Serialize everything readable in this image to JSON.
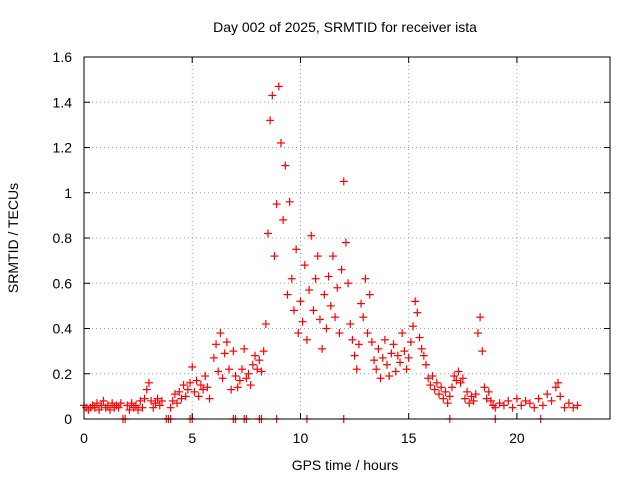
{
  "chart_data": {
    "type": "scatter",
    "title": "Day 002 of 2025, SRMTID for receiver ista",
    "xlabel": "GPS time / hours",
    "ylabel": "SRMTID / TECUs",
    "xlim": [
      0,
      24.3
    ],
    "ylim": [
      0,
      1.6
    ],
    "xticks": [
      0,
      5,
      10,
      15,
      20
    ],
    "xtick_labels": [
      "0",
      "5",
      "10",
      "15",
      "20"
    ],
    "yticks": [
      0,
      0.2,
      0.4,
      0.6,
      0.8,
      1,
      1.2,
      1.4,
      1.6
    ],
    "ytick_labels": [
      "0",
      "0.2",
      "0.4",
      "0.6",
      "0.8",
      "1",
      "1.2",
      "1.4",
      "1.6"
    ],
    "grid": true,
    "marker": "+",
    "series": [
      {
        "name": "SRMTID",
        "color": "#ff0000",
        "points": [
          [
            0.0,
            0.06
          ],
          [
            0.1,
            0.05
          ],
          [
            0.2,
            0.04
          ],
          [
            0.3,
            0.05
          ],
          [
            0.4,
            0.06
          ],
          [
            0.5,
            0.05
          ],
          [
            0.6,
            0.07
          ],
          [
            0.7,
            0.04
          ],
          [
            0.8,
            0.06
          ],
          [
            0.9,
            0.08
          ],
          [
            1.0,
            0.05
          ],
          [
            1.1,
            0.06
          ],
          [
            1.2,
            0.04
          ],
          [
            1.3,
            0.07
          ],
          [
            1.4,
            0.05
          ],
          [
            1.5,
            0.06
          ],
          [
            1.6,
            0.05
          ],
          [
            1.7,
            0.07
          ],
          [
            2.0,
            0.06
          ],
          [
            2.1,
            0.04
          ],
          [
            2.2,
            0.07
          ],
          [
            2.3,
            0.05
          ],
          [
            2.4,
            0.06
          ],
          [
            2.5,
            0.04
          ],
          [
            2.6,
            0.08
          ],
          [
            2.7,
            0.05
          ],
          [
            2.8,
            0.09
          ],
          [
            2.9,
            0.13
          ],
          [
            3.0,
            0.16
          ],
          [
            3.1,
            0.08
          ],
          [
            3.2,
            0.05
          ],
          [
            3.3,
            0.07
          ],
          [
            3.4,
            0.09
          ],
          [
            3.5,
            0.06
          ],
          [
            3.6,
            0.08
          ],
          [
            4.0,
            0.05
          ],
          [
            4.1,
            0.08
          ],
          [
            4.2,
            0.11
          ],
          [
            4.3,
            0.07
          ],
          [
            4.4,
            0.12
          ],
          [
            4.5,
            0.09
          ],
          [
            4.6,
            0.15
          ],
          [
            4.7,
            0.1
          ],
          [
            4.8,
            0.13
          ],
          [
            4.9,
            0.16
          ],
          [
            5.0,
            0.23
          ],
          [
            5.1,
            0.12
          ],
          [
            5.2,
            0.17
          ],
          [
            5.3,
            0.1
          ],
          [
            5.4,
            0.15
          ],
          [
            5.5,
            0.13
          ],
          [
            5.6,
            0.19
          ],
          [
            5.7,
            0.14
          ],
          [
            5.8,
            0.09
          ],
          [
            6.0,
            0.27
          ],
          [
            6.1,
            0.33
          ],
          [
            6.2,
            0.21
          ],
          [
            6.3,
            0.38
          ],
          [
            6.4,
            0.18
          ],
          [
            6.5,
            0.29
          ],
          [
            6.6,
            0.34
          ],
          [
            6.7,
            0.22
          ],
          [
            6.8,
            0.13
          ],
          [
            6.9,
            0.3
          ],
          [
            7.0,
            0.19
          ],
          [
            7.1,
            0.14
          ],
          [
            7.2,
            0.17
          ],
          [
            7.3,
            0.22
          ],
          [
            7.4,
            0.31
          ],
          [
            7.5,
            0.18
          ],
          [
            7.6,
            0.2
          ],
          [
            7.7,
            0.15
          ],
          [
            7.8,
            0.24
          ],
          [
            7.9,
            0.28
          ],
          [
            8.0,
            0.22
          ],
          [
            8.1,
            0.26
          ],
          [
            8.2,
            0.21
          ],
          [
            8.3,
            0.3
          ],
          [
            8.4,
            0.42
          ],
          [
            8.5,
            0.82
          ],
          [
            8.6,
            1.32
          ],
          [
            8.7,
            1.43
          ],
          [
            8.8,
            0.72
          ],
          [
            8.9,
            0.95
          ],
          [
            9.0,
            1.47
          ],
          [
            9.1,
            1.22
          ],
          [
            9.2,
            0.88
          ],
          [
            9.3,
            1.12
          ],
          [
            9.4,
            0.55
          ],
          [
            9.5,
            0.96
          ],
          [
            9.6,
            0.62
          ],
          [
            9.7,
            0.48
          ],
          [
            9.8,
            0.75
          ],
          [
            9.9,
            0.38
          ],
          [
            10.0,
            0.52
          ],
          [
            10.1,
            0.43
          ],
          [
            10.2,
            0.68
          ],
          [
            10.3,
            0.35
          ],
          [
            10.4,
            0.57
          ],
          [
            10.5,
            0.81
          ],
          [
            10.6,
            0.48
          ],
          [
            10.7,
            0.62
          ],
          [
            10.8,
            0.72
          ],
          [
            10.9,
            0.44
          ],
          [
            11.0,
            0.31
          ],
          [
            11.1,
            0.55
          ],
          [
            11.2,
            0.4
          ],
          [
            11.3,
            0.63
          ],
          [
            11.4,
            0.5
          ],
          [
            11.5,
            0.72
          ],
          [
            11.6,
            0.45
          ],
          [
            11.7,
            0.58
          ],
          [
            11.8,
            0.38
          ],
          [
            11.9,
            0.66
          ],
          [
            12.0,
            1.05
          ],
          [
            12.1,
            0.78
          ],
          [
            12.2,
            0.6
          ],
          [
            12.3,
            0.42
          ],
          [
            12.4,
            0.35
          ],
          [
            12.5,
            0.28
          ],
          [
            12.6,
            0.22
          ],
          [
            12.7,
            0.33
          ],
          [
            12.8,
            0.51
          ],
          [
            12.9,
            0.45
          ],
          [
            13.0,
            0.62
          ],
          [
            13.1,
            0.38
          ],
          [
            13.2,
            0.55
          ],
          [
            13.3,
            0.34
          ],
          [
            13.4,
            0.26
          ],
          [
            13.5,
            0.22
          ],
          [
            13.6,
            0.31
          ],
          [
            13.7,
            0.18
          ],
          [
            13.8,
            0.27
          ],
          [
            13.9,
            0.35
          ],
          [
            14.0,
            0.24
          ],
          [
            14.1,
            0.19
          ],
          [
            14.2,
            0.29
          ],
          [
            14.3,
            0.33
          ],
          [
            14.4,
            0.21
          ],
          [
            14.5,
            0.28
          ],
          [
            14.6,
            0.25
          ],
          [
            14.7,
            0.38
          ],
          [
            14.8,
            0.3
          ],
          [
            14.9,
            0.22
          ],
          [
            15.0,
            0.27
          ],
          [
            15.1,
            0.34
          ],
          [
            15.2,
            0.41
          ],
          [
            15.3,
            0.52
          ],
          [
            15.4,
            0.47
          ],
          [
            15.5,
            0.36
          ],
          [
            15.6,
            0.31
          ],
          [
            15.7,
            0.28
          ],
          [
            15.8,
            0.24
          ],
          [
            15.9,
            0.18
          ],
          [
            16.0,
            0.15
          ],
          [
            16.1,
            0.19
          ],
          [
            16.2,
            0.13
          ],
          [
            16.3,
            0.16
          ],
          [
            16.4,
            0.11
          ],
          [
            16.5,
            0.14
          ],
          [
            16.6,
            0.09
          ],
          [
            16.7,
            0.12
          ],
          [
            16.8,
            0.07
          ],
          [
            16.9,
            0.1
          ],
          [
            17.0,
            0.14
          ],
          [
            17.1,
            0.19
          ],
          [
            17.2,
            0.17
          ],
          [
            17.3,
            0.21
          ],
          [
            17.4,
            0.16
          ],
          [
            17.5,
            0.18
          ],
          [
            17.6,
            0.09
          ],
          [
            17.7,
            0.12
          ],
          [
            17.8,
            0.07
          ],
          [
            17.9,
            0.1
          ],
          [
            18.0,
            0.08
          ],
          [
            18.1,
            0.11
          ],
          [
            18.2,
            0.38
          ],
          [
            18.3,
            0.45
          ],
          [
            18.4,
            0.3
          ],
          [
            18.5,
            0.14
          ],
          [
            18.6,
            0.09
          ],
          [
            18.7,
            0.12
          ],
          [
            18.8,
            0.08
          ],
          [
            18.9,
            0.06
          ],
          [
            19.0,
            0.05
          ],
          [
            19.2,
            0.07
          ],
          [
            19.4,
            0.06
          ],
          [
            19.6,
            0.08
          ],
          [
            19.8,
            0.05
          ],
          [
            20.0,
            0.09
          ],
          [
            20.2,
            0.06
          ],
          [
            20.4,
            0.08
          ],
          [
            20.6,
            0.07
          ],
          [
            20.8,
            0.05
          ],
          [
            21.0,
            0.09
          ],
          [
            21.2,
            0.06
          ],
          [
            21.4,
            0.11
          ],
          [
            21.6,
            0.08
          ],
          [
            21.8,
            0.14
          ],
          [
            21.9,
            0.16
          ],
          [
            22.0,
            0.1
          ],
          [
            22.2,
            0.05
          ],
          [
            22.4,
            0.07
          ],
          [
            22.6,
            0.05
          ],
          [
            22.8,
            0.06
          ],
          [
            1.8,
            0.0
          ],
          [
            1.9,
            0.0
          ],
          [
            3.8,
            0.0
          ],
          [
            3.9,
            0.0
          ],
          [
            4.0,
            0.0
          ],
          [
            4.9,
            0.0
          ],
          [
            5.0,
            0.0
          ],
          [
            6.9,
            0.0
          ],
          [
            7.0,
            0.0
          ],
          [
            7.4,
            0.0
          ],
          [
            7.5,
            0.0
          ],
          [
            8.1,
            0.0
          ],
          [
            8.2,
            0.0
          ],
          [
            8.9,
            0.0
          ],
          [
            10.3,
            0.0
          ],
          [
            12.0,
            0.0
          ],
          [
            16.9,
            0.0
          ],
          [
            19.0,
            0.0
          ],
          [
            21.1,
            0.0
          ]
        ]
      }
    ]
  }
}
